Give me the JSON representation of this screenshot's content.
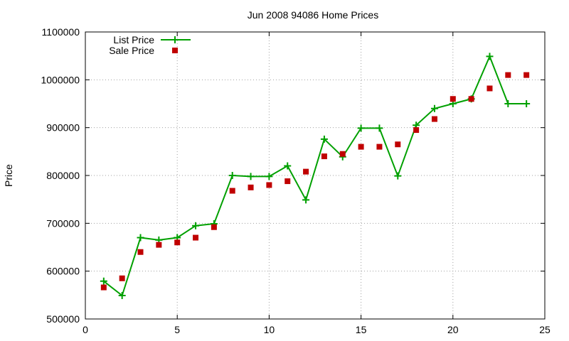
{
  "chart_data": {
    "type": "line",
    "title": "Jun 2008 94086 Home Prices",
    "xlabel": "",
    "ylabel": "Price",
    "xlim": [
      0,
      25
    ],
    "ylim": [
      500000,
      1100000
    ],
    "x_ticks": [
      0,
      5,
      10,
      15,
      20,
      25
    ],
    "y_ticks": [
      500000,
      600000,
      700000,
      800000,
      900000,
      1000000,
      1100000
    ],
    "grid": true,
    "legend_position": "top-left",
    "series": [
      {
        "name": "List Price",
        "style": "line-with-crosses",
        "color": "#00a000",
        "x": [
          1,
          2,
          3,
          4,
          5,
          6,
          7,
          8,
          9,
          10,
          11,
          12,
          13,
          14,
          15,
          16,
          17,
          18,
          19,
          20,
          21,
          22,
          23,
          24
        ],
        "values": [
          579000,
          549000,
          670000,
          665000,
          670000,
          695000,
          699000,
          800000,
          798000,
          798000,
          820000,
          749000,
          876000,
          839000,
          899000,
          899000,
          799000,
          905000,
          940000,
          950000,
          960000,
          1049000,
          950000,
          950000
        ]
      },
      {
        "name": "Sale Price",
        "style": "squares",
        "color": "#c00000",
        "x": [
          1,
          2,
          3,
          4,
          5,
          6,
          7,
          8,
          9,
          10,
          11,
          12,
          13,
          14,
          15,
          16,
          17,
          18,
          19,
          20,
          21,
          22,
          23,
          24
        ],
        "values": [
          566000,
          585000,
          640000,
          655000,
          660000,
          670000,
          692000,
          768000,
          775000,
          780000,
          788000,
          808000,
          840000,
          845000,
          860000,
          860000,
          865000,
          895000,
          918000,
          960000,
          960000,
          982000,
          1010000,
          1010000
        ]
      }
    ]
  }
}
